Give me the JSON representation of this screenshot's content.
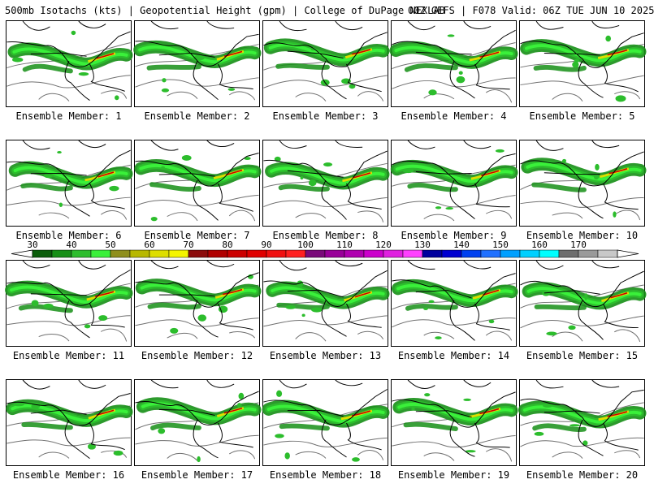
{
  "header": {
    "title_left": "500mb Isotachs (kts) | Geopotential Height (gpm) | College of DuPage NEXLAB",
    "title_right": "00Z GEFS | F078 Valid: 06Z TUE JUN 10 2025"
  },
  "colorbar": {
    "labels": [
      "30",
      "40",
      "50",
      "60",
      "70",
      "80",
      "90",
      "100",
      "110",
      "120",
      "130",
      "140",
      "150",
      "160",
      "170"
    ],
    "colors": [
      "#0b5d0b",
      "#168f16",
      "#2cbd2c",
      "#3af03a",
      "#8f8f1c",
      "#b8b800",
      "#dede00",
      "#f5f500",
      "#8c0c0c",
      "#b00000",
      "#cc0000",
      "#e00000",
      "#f01010",
      "#ff2020",
      "#7a0a7a",
      "#990099",
      "#b000b0",
      "#cc00cc",
      "#e020e0",
      "#ff40ff",
      "#00009e",
      "#0000d0",
      "#0040f0",
      "#2070ff",
      "#00a0ff",
      "#00d0ff",
      "#00ffff",
      "#6e6e6e",
      "#9a9a9a",
      "#c8c8c8"
    ]
  },
  "members": [
    {
      "label": "Ensemble Member: 1"
    },
    {
      "label": "Ensemble Member: 2"
    },
    {
      "label": "Ensemble Member: 3"
    },
    {
      "label": "Ensemble Member: 4"
    },
    {
      "label": "Ensemble Member: 5"
    },
    {
      "label": "Ensemble Member: 6"
    },
    {
      "label": "Ensemble Member: 7"
    },
    {
      "label": "Ensemble Member: 8"
    },
    {
      "label": "Ensemble Member: 9"
    },
    {
      "label": "Ensemble Member: 10"
    },
    {
      "label": "Ensemble Member: 11"
    },
    {
      "label": "Ensemble Member: 12"
    },
    {
      "label": "Ensemble Member: 13"
    },
    {
      "label": "Ensemble Member: 14"
    },
    {
      "label": "Ensemble Member: 15"
    },
    {
      "label": "Ensemble Member: 16"
    },
    {
      "label": "Ensemble Member: 17"
    },
    {
      "label": "Ensemble Member: 18"
    },
    {
      "label": "Ensemble Member: 19"
    },
    {
      "label": "Ensemble Member: 20"
    }
  ]
}
